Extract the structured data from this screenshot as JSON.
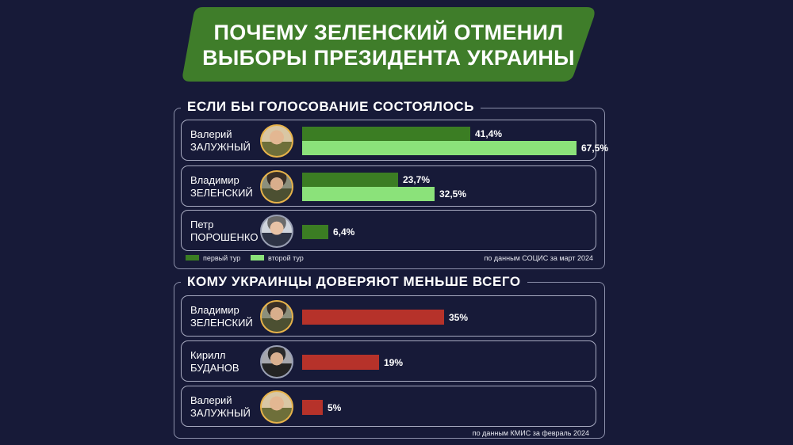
{
  "header": {
    "title_line1": "ПОЧЕМУ ЗЕЛЕНСКИЙ ОТМЕНИЛ",
    "title_line2": "ВЫБОРЫ ПРЕЗИДЕНТА УКРАИНЫ"
  },
  "colors": {
    "background": "#171a38",
    "banner": "#3f7d2a",
    "first_round": "#3b7d23",
    "second_round": "#8be27a",
    "distrust": "#b6322a"
  },
  "chart_data": [
    {
      "type": "bar",
      "orientation": "horizontal",
      "title": "ЕСЛИ БЫ ГОЛОСОВАНИЕ СОСТОЯЛОСЬ",
      "source": "по данным СОЦИС за март 2024",
      "legend": [
        "первый тур",
        "второй тур"
      ],
      "legend_placement": "bottom-left",
      "xlim": [
        0,
        67.5
      ],
      "candidates": [
        {
          "first_name": "Валерий",
          "last_name": "ЗАЛУЖНЫЙ",
          "avatar_icon": "zaluzhny-photo-icon",
          "bars": [
            {
              "series": "первый тур",
              "value": 41.4,
              "label": "41,4%"
            },
            {
              "series": "второй тур",
              "value": 67.5,
              "label": "67,5%"
            }
          ]
        },
        {
          "first_name": "Владимир",
          "last_name": "ЗЕЛЕНСКИЙ",
          "avatar_icon": "zelensky-photo-icon",
          "bars": [
            {
              "series": "первый тур",
              "value": 23.7,
              "label": "23,7%"
            },
            {
              "series": "второй тур",
              "value": 32.5,
              "label": "32,5%"
            }
          ]
        },
        {
          "first_name": "Петр",
          "last_name": "ПОРОШЕНКО",
          "avatar_icon": "poroshenko-photo-icon",
          "bars": [
            {
              "series": "первый тур",
              "value": 6.4,
              "label": "6,4%"
            }
          ]
        }
      ]
    },
    {
      "type": "bar",
      "orientation": "horizontal",
      "title": "КОМУ УКРАИНЦЫ ДОВЕРЯЮТ МЕНЬШЕ ВСЕГО",
      "source": "по данным КМИС за февраль 2024",
      "xlim": [
        0,
        67.5
      ],
      "candidates": [
        {
          "first_name": "Владимир",
          "last_name": "ЗЕЛЕНСКИЙ",
          "avatar_icon": "zelensky-photo-icon",
          "bars": [
            {
              "value": 35,
              "label": "35%"
            }
          ]
        },
        {
          "first_name": "Кирилл",
          "last_name": "БУДАНОВ",
          "avatar_icon": "budanov-photo-icon",
          "bars": [
            {
              "value": 19,
              "label": "19%"
            }
          ]
        },
        {
          "first_name": "Валерий",
          "last_name": "ЗАЛУЖНЫЙ",
          "avatar_icon": "zaluzhny-photo-icon",
          "bars": [
            {
              "value": 5,
              "label": "5%"
            }
          ]
        }
      ]
    }
  ]
}
